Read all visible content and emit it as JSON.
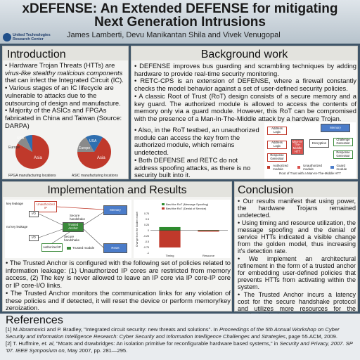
{
  "header": {
    "title_line1": "xDEFENSE: An Extended DEFENSE for mitigating",
    "title_line2": "Next Generation Intrusions",
    "authors": "James Lamberti, Devu Manikantan Shila and Vivek Venugopal",
    "logo_line1": "United Technologies",
    "logo_line2": "Research Center"
  },
  "introduction": {
    "title": "Introduction",
    "bullet1_a": "• Hardware Trojan Threats (HTTs) are ",
    "bullet1_b": "virus-like stealthy malicious components",
    "bullet1_c": " that can infect the Integrated Circuit (IC).",
    "bullet2": "• Various stages of an IC lifecycle are vulnerable to attacks due to the outsourcing of design and manufacture.",
    "bullet3": "• Majority of the ASICs and FPGAs fabricated in China and Taiwan (Source: DARPA)",
    "pie1_caption": "FPGA manufacturing locations",
    "pie2_caption": "ASIC manufacturing locations",
    "pie1_labels": [
      "USA",
      "Europe",
      "Asia"
    ],
    "pie2_labels": [
      "USA",
      "Europe",
      "Asia"
    ]
  },
  "background": {
    "title": "Background work",
    "bullet1": "• DEFENSE improves bus guarding and scrambling techniques by adding hardware to provide real-time security monitoring.",
    "bullet2": "• RETC-CPS is an extension of DEFENSE, where a firewall constantly checks the model behavior against a set of user-defined security policies.",
    "bullet3": "• A classic Root of Trust (RoT) design consists of a secure memory and a key guard. The authorized module is allowed to access the contents of memory only via a guard module. However, this RoT can be compromised with the presence of a Man-In-The-Middle attack by a hardware Trojan.",
    "bullet4": "• Also, in the RoT testbed, an unauthorized module can access the key from the authorized module, which remains undetected.",
    "bullet5": "• Both DEFENSE and RETC do not address spoofing attacks, as there is no security built into it.",
    "diagram": {
      "memory": "Memory",
      "address_logic": "Address Logic",
      "response_generator_a": "Response Generator",
      "mitm": "Man-In-The-Middle HTT",
      "encryption": "Encryption",
      "challenge_generator": "Challenge Generator",
      "response_generator_b": "Response Generator",
      "legend_authorized": "Authorized module",
      "legend_unauthorized": "Unauthorized module",
      "legend_guard": "Guard module",
      "caption": "Root of Trust with a Man-In-The-Middle HTT"
    }
  },
  "implementation": {
    "title": "Implementation and Results",
    "bullet1": "• The Trusted Anchor is configured with the following set of policies related to information leakage: (1) Unauthorized IP cores are restricted from memory access, (2) The key is never allowed to leave an IP core via IP core-IP core or IP core-I/O links.",
    "bullet2": "• The Trusted Anchor monitors the communication links for any violation of these policies and if detected, it will reset the device or perform memory/key zeroization.",
    "diagram": {
      "key_leakage": "key leakage",
      "no_key_leakage": "no key leakage",
      "unauthorized_ip": "Unauthorized IP",
      "io_a": "I/O",
      "io_b": "I/O",
      "secure_handshake_a": "Secure handshake",
      "secure_handshake_b": "Secure handshake",
      "trusted_anchor": "Trusted Anchor",
      "memory": "Memory",
      "reset": "Reset",
      "authorized_ip": "Authorized IP",
      "trusted_module": "Trusted module"
    }
  },
  "chart_data": {
    "type": "bar",
    "categories": [
      "Timing",
      "Resource"
    ],
    "series": [
      {
        "name": "Best the RoT (Message Spoofing)",
        "values": [
          0.15,
          0.02
        ]
      },
      {
        "name": "Best the RoT (Denial of Service)",
        "values": [
          -0.75,
          -0.05
        ]
      }
    ],
    "ylabel": "Change from the Golden model",
    "ylim": [
      -1,
      0.8
    ],
    "yticks": [
      "0.75",
      "0.5",
      "0.25",
      "0",
      "-0.25",
      "-0.5",
      "-0.75",
      "-1"
    ],
    "colors": [
      "#2e8b2e",
      "#c0392b"
    ],
    "legend_position": "top"
  },
  "conclusion": {
    "title": "Conclusion",
    "bullet1": "• Our results manifest that using power, the hardware Trojans remained undetected.",
    "bullet2": "• Using timing and resource utilization, the message spoofing and the denial of service HTTs indicated a visible change from the golden model, thus increasing it's detection rate.",
    "bullet3": "• We implement an architectural refinement in the form of a trusted anchor for embedding user-defined policies that prevents HTTs from activating within the system.",
    "bullet4": "• The Trusted Anchor incurs a latency cost for the secure handshake protocol and utilizes more resources for the monitoring logic."
  },
  "references": {
    "title": "References",
    "ref1_a": "[1] M.Abramovici and P. Bradley, \"Integrated circuit security: new threats and solutions\". In ",
    "ref1_b": "Proceedings of the 5th Annual Workshop on Cyber Security and Information Intelligence Research: Cyber Security and Information Intelligence Challenges and Strategies",
    "ref1_c": ", page 55.ACM, 2009.",
    "ref2_a": "[2] T. Huffmire, ",
    "ref2_b": "et. al",
    "ref2_c": ", \"Moats and drawbridges: An isolation primitive for reconfigurable hardware based systems,\" in ",
    "ref2_d": "Security and Privacy, 2007. SP '07. IEEE Symposium on",
    "ref2_e": ", May 2007, pp. 281—295."
  }
}
